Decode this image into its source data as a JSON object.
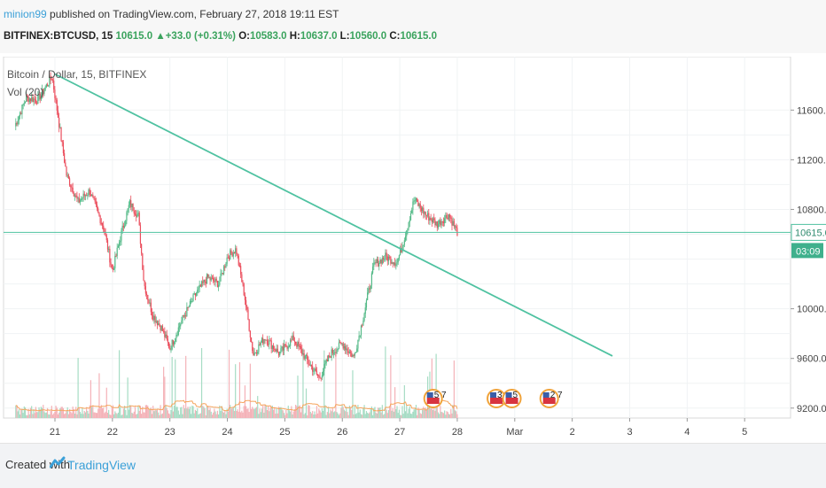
{
  "header": {
    "user": "minion99",
    "published_text": " published on TradingView.com, February 27, 2018 19:11 EST"
  },
  "symbol_line": {
    "symbol": "BITFINEX:BTCUSD, 15",
    "last": "10615.0",
    "change": "+33.0 (+0.31%)",
    "open_label": "O:",
    "open": "10583.0",
    "high_label": "H:",
    "high": "10637.0",
    "low_label": "L:",
    "low": "10560.0",
    "close_label": "C:",
    "close": "10615.0"
  },
  "chart_data": {
    "type": "candlestick",
    "title": "Bitcoin / Dollar, 15, BITFINEX",
    "indicator_label": "Vol (20)",
    "x_tick_labels": [
      "21",
      "22",
      "23",
      "24",
      "25",
      "26",
      "27",
      "28",
      "Mar",
      "2",
      "3",
      "4",
      "5"
    ],
    "y_tick_labels": [
      "11600.0",
      "11200.0",
      "10800.0",
      "10000.0",
      "9600.0",
      "9200.0"
    ],
    "ylim": [
      9120,
      12030
    ],
    "last_price": 10615,
    "last_price_label": "10615.0",
    "countdown_label": "03:09",
    "price_path": [
      [
        20.3,
        11470
      ],
      [
        20.5,
        11700
      ],
      [
        20.7,
        11680
      ],
      [
        20.95,
        11870
      ],
      [
        21.05,
        11560
      ],
      [
        21.2,
        11080
      ],
      [
        21.4,
        10860
      ],
      [
        21.6,
        10950
      ],
      [
        21.85,
        10650
      ],
      [
        22.0,
        10300
      ],
      [
        22.15,
        10600
      ],
      [
        22.3,
        10850
      ],
      [
        22.45,
        10750
      ],
      [
        22.55,
        10200
      ],
      [
        22.7,
        9950
      ],
      [
        22.85,
        9850
      ],
      [
        23.0,
        9680
      ],
      [
        23.2,
        9900
      ],
      [
        23.45,
        10120
      ],
      [
        23.65,
        10250
      ],
      [
        23.85,
        10200
      ],
      [
        24.0,
        10420
      ],
      [
        24.15,
        10480
      ],
      [
        24.3,
        10100
      ],
      [
        24.45,
        9630
      ],
      [
        24.65,
        9770
      ],
      [
        24.9,
        9640
      ],
      [
        25.15,
        9760
      ],
      [
        25.35,
        9610
      ],
      [
        25.6,
        9440
      ],
      [
        25.8,
        9640
      ],
      [
        26.0,
        9720
      ],
      [
        26.2,
        9610
      ],
      [
        26.35,
        9900
      ],
      [
        26.55,
        10350
      ],
      [
        26.75,
        10420
      ],
      [
        26.95,
        10370
      ],
      [
        27.05,
        10520
      ],
      [
        27.25,
        10880
      ],
      [
        27.45,
        10760
      ],
      [
        27.65,
        10680
      ],
      [
        27.85,
        10760
      ],
      [
        28.0,
        10615
      ]
    ],
    "trendline": {
      "start": [
        21.0,
        11890
      ],
      "end": [
        30.7,
        9620
      ]
    },
    "events": [
      {
        "x": 27.58,
        "label": "5 7"
      },
      {
        "x": 28.68,
        "label": "34"
      },
      {
        "x": 28.95,
        "label": "5"
      },
      {
        "x": 29.6,
        "label": "2 7"
      }
    ]
  },
  "colors": {
    "up": "#53b987",
    "down": "#eb4d5c",
    "trendline": "#4fc2a1",
    "price_line": "#4fc2a1",
    "volume_ma": "#f5a45b"
  },
  "footer": {
    "created_with": "Created with",
    "brand": "TradingView"
  }
}
